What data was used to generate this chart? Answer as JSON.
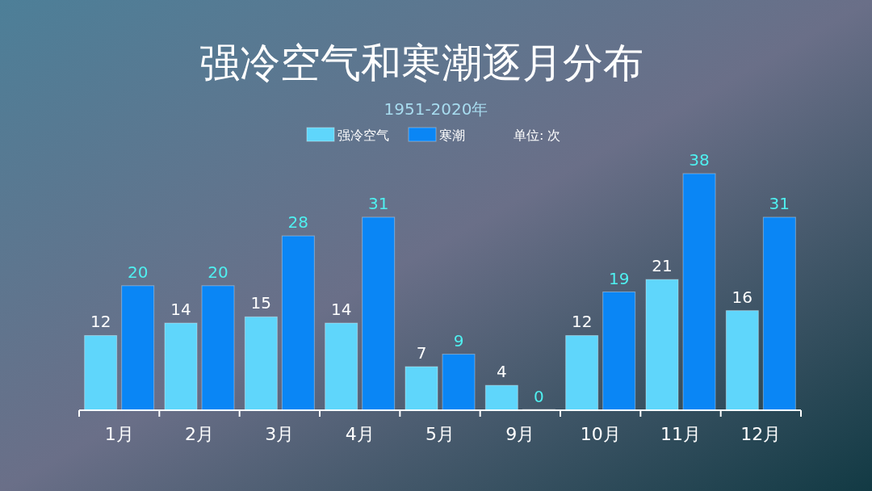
{
  "chart_data": {
    "type": "bar",
    "title": "强冷空气和寒潮逐月分布",
    "subtitle": "1951-2020年",
    "categories": [
      "1月",
      "2月",
      "3月",
      "4月",
      "5月",
      "9月",
      "10月",
      "11月",
      "12月"
    ],
    "series": [
      {
        "name": "强冷空气",
        "color": "#5fd6fb",
        "values": [
          12,
          14,
          15,
          14,
          7,
          4,
          12,
          21,
          16
        ]
      },
      {
        "name": "寒潮",
        "color": "#0a86f5",
        "values": [
          20,
          20,
          28,
          31,
          9,
          0,
          19,
          38,
          31
        ]
      }
    ],
    "annotations": [
      "单位: 次"
    ],
    "data_labels": true,
    "legend": "top"
  }
}
